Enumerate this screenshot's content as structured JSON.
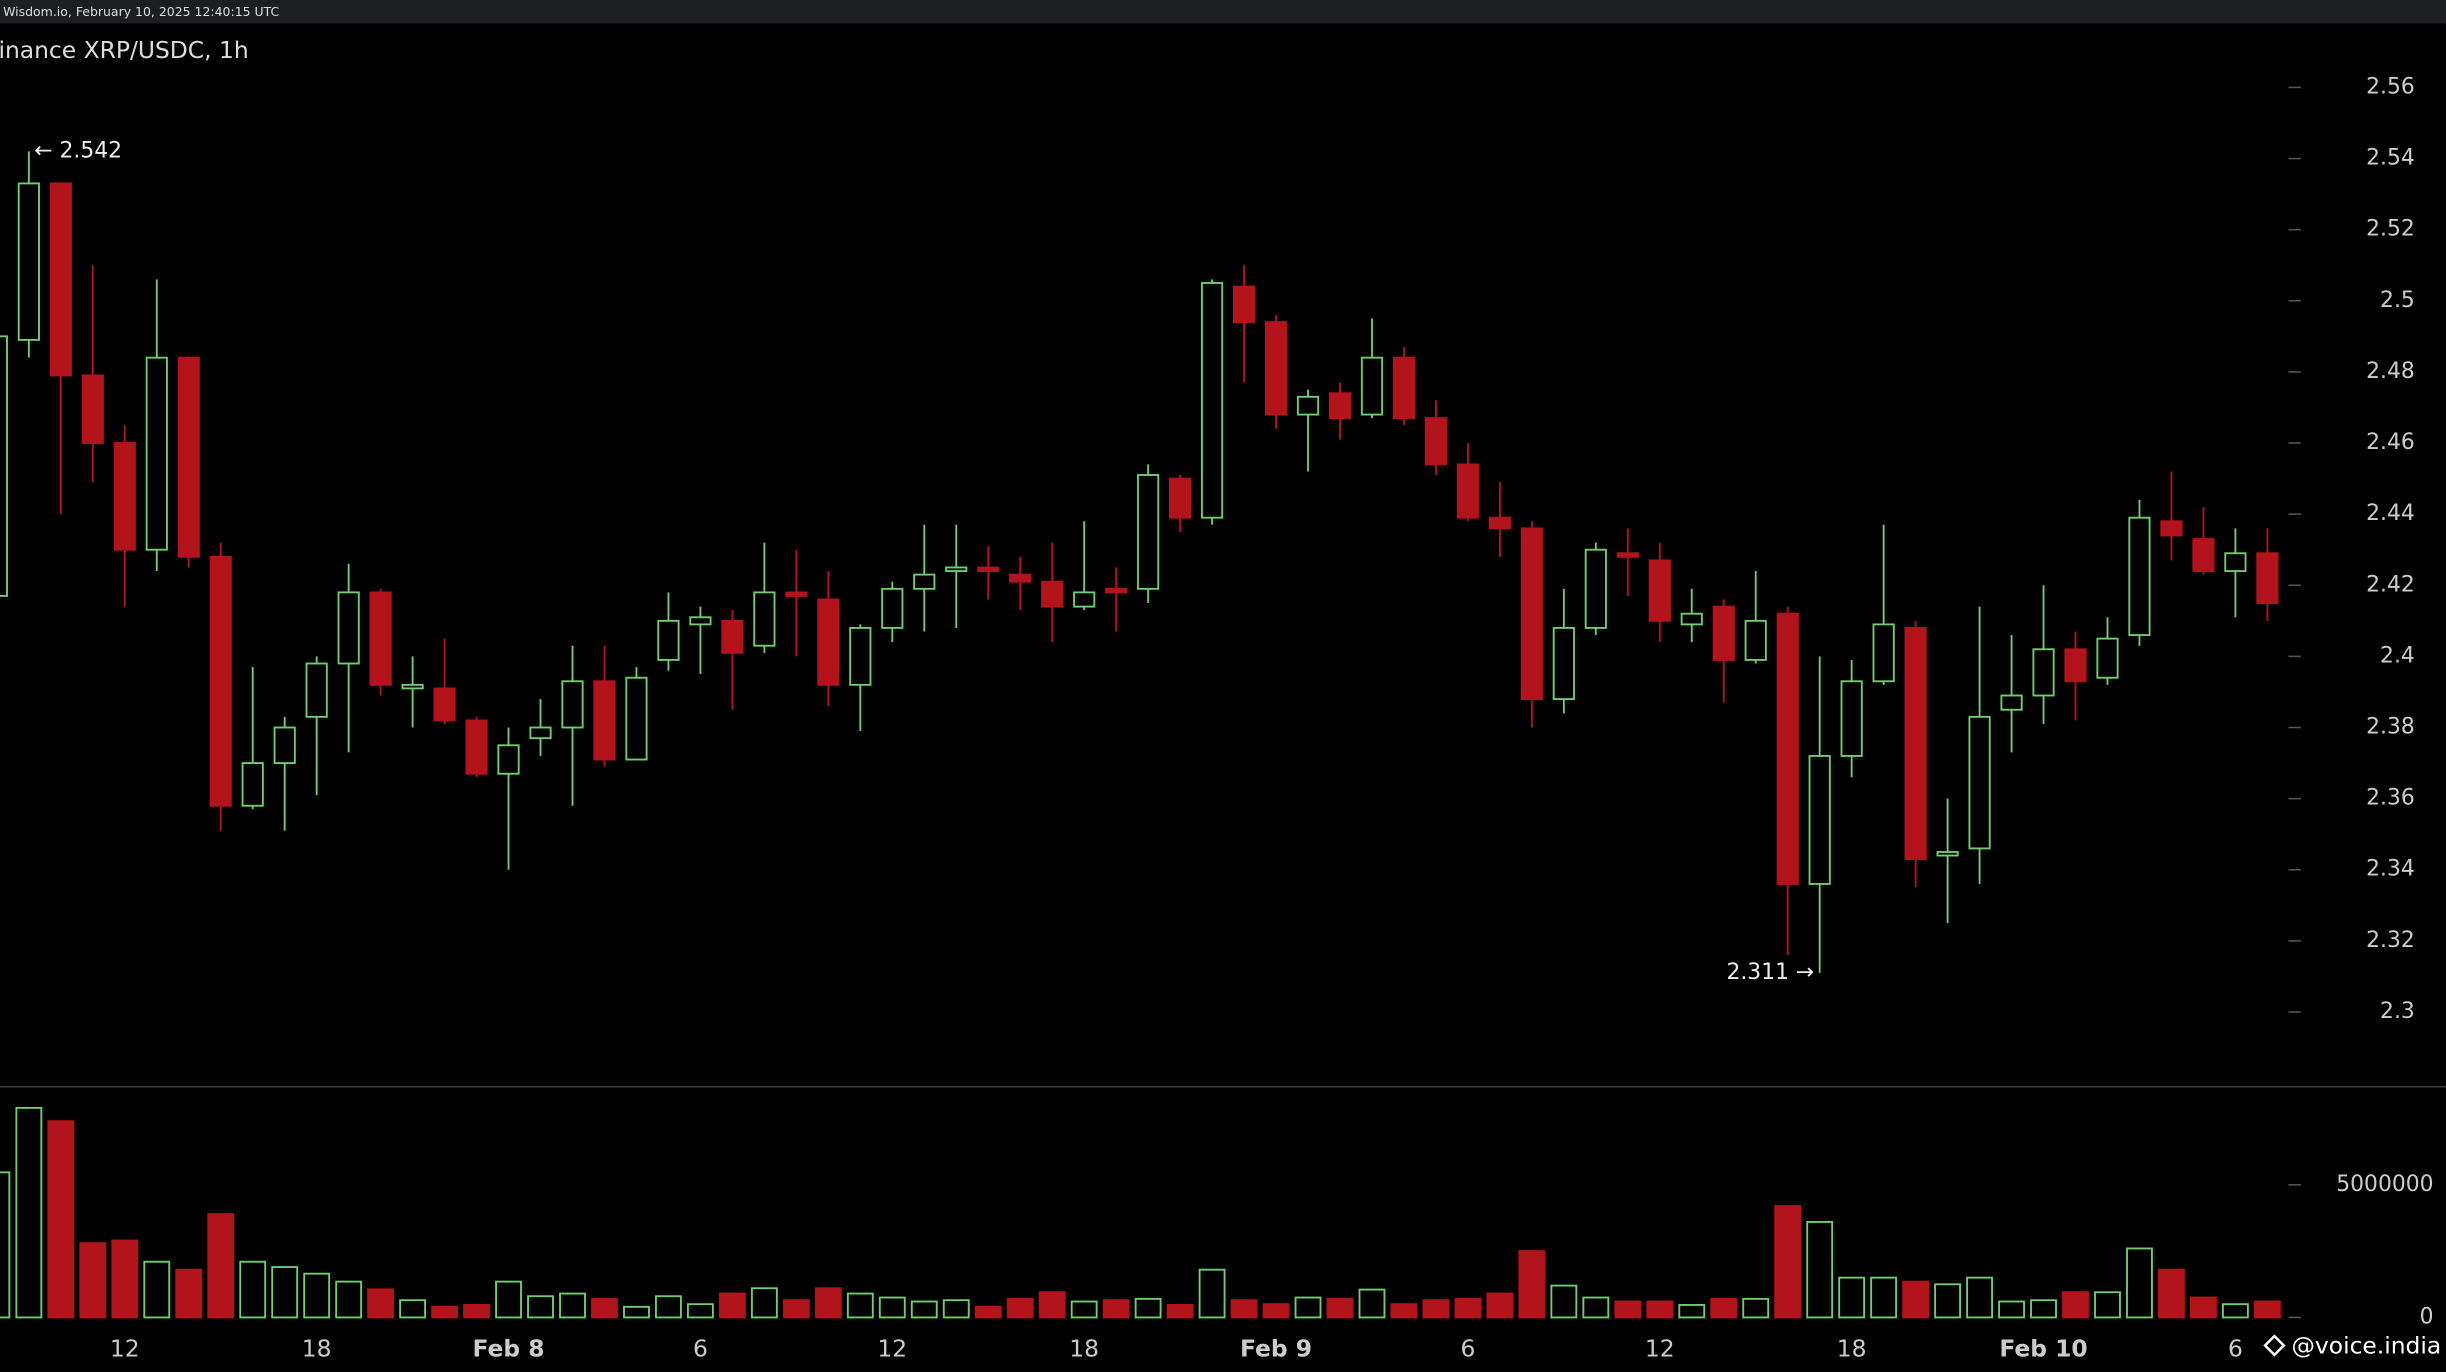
{
  "chart_data": {
    "type": "candlestick",
    "header": "Wisdom.io, February 10, 2025 12:40:15 UTC",
    "title": "inance XRP/USDC, 1h",
    "watermark": "@voice.india",
    "categories": [
      null,
      null,
      null,
      null,
      "12",
      null,
      null,
      null,
      null,
      null,
      "18",
      null,
      null,
      null,
      null,
      null,
      "Feb 8",
      null,
      null,
      null,
      null,
      null,
      "6",
      null,
      null,
      null,
      null,
      null,
      "12",
      null,
      null,
      null,
      null,
      null,
      "18",
      null,
      null,
      null,
      null,
      null,
      "Feb 9",
      null,
      null,
      null,
      null,
      null,
      "6",
      null,
      null,
      null,
      null,
      null,
      "12",
      null,
      null,
      null,
      null,
      null,
      "18",
      null,
      null,
      null,
      null,
      null,
      "Feb 10",
      null,
      null,
      null,
      null,
      null,
      "6",
      null
    ],
    "open": [
      2.417,
      2.489,
      2.533,
      2.479,
      2.46,
      2.43,
      2.484,
      2.428,
      2.358,
      2.37,
      2.383,
      2.398,
      2.418,
      2.391,
      2.391,
      2.382,
      2.367,
      2.377,
      2.38,
      2.393,
      2.371,
      2.399,
      2.409,
      2.41,
      2.403,
      2.418,
      2.416,
      2.392,
      2.408,
      2.419,
      2.424,
      2.425,
      2.423,
      2.421,
      2.414,
      2.419,
      2.419,
      2.45,
      2.439,
      2.504,
      2.494,
      2.468,
      2.474,
      2.468,
      2.484,
      2.467,
      2.454,
      2.439,
      2.436,
      2.388,
      2.408,
      2.429,
      2.427,
      2.409,
      2.414,
      2.399,
      2.412,
      2.336,
      2.372,
      2.393,
      2.408,
      2.344,
      2.346,
      2.385,
      2.389,
      2.402,
      2.394,
      2.406,
      2.438,
      2.433,
      2.424,
      2.429
    ],
    "high": [
      2.49,
      2.542,
      2.533,
      2.51,
      2.465,
      2.506,
      2.484,
      2.432,
      2.397,
      2.383,
      2.4,
      2.426,
      2.419,
      2.4,
      2.405,
      2.383,
      2.38,
      2.388,
      2.403,
      2.403,
      2.397,
      2.418,
      2.414,
      2.413,
      2.432,
      2.43,
      2.424,
      2.409,
      2.421,
      2.437,
      2.437,
      2.431,
      2.428,
      2.432,
      2.438,
      2.425,
      2.454,
      2.451,
      2.506,
      2.51,
      2.496,
      2.475,
      2.477,
      2.495,
      2.487,
      2.472,
      2.46,
      2.449,
      2.438,
      2.419,
      2.432,
      2.436,
      2.432,
      2.419,
      2.416,
      2.424,
      2.414,
      2.4,
      2.399,
      2.437,
      2.41,
      2.36,
      2.414,
      2.406,
      2.42,
      2.407,
      2.411,
      2.444,
      2.452,
      2.442,
      2.436,
      2.436
    ],
    "low": [
      2.417,
      2.484,
      2.44,
      2.449,
      2.414,
      2.424,
      2.425,
      2.351,
      2.357,
      2.351,
      2.361,
      2.373,
      2.389,
      2.38,
      2.381,
      2.366,
      2.34,
      2.372,
      2.358,
      2.369,
      2.371,
      2.396,
      2.395,
      2.385,
      2.401,
      2.4,
      2.386,
      2.379,
      2.404,
      2.407,
      2.408,
      2.416,
      2.413,
      2.404,
      2.413,
      2.407,
      2.415,
      2.435,
      2.437,
      2.477,
      2.464,
      2.452,
      2.461,
      2.467,
      2.465,
      2.451,
      2.438,
      2.428,
      2.38,
      2.384,
      2.406,
      2.417,
      2.404,
      2.404,
      2.387,
      2.398,
      2.316,
      2.311,
      2.366,
      2.392,
      2.335,
      2.325,
      2.336,
      2.373,
      2.381,
      2.382,
      2.392,
      2.403,
      2.427,
      2.423,
      2.411,
      2.41
    ],
    "close": [
      2.49,
      2.533,
      2.479,
      2.46,
      2.43,
      2.484,
      2.428,
      2.358,
      2.37,
      2.38,
      2.398,
      2.418,
      2.392,
      2.392,
      2.382,
      2.367,
      2.375,
      2.38,
      2.393,
      2.371,
      2.394,
      2.41,
      2.411,
      2.401,
      2.418,
      2.417,
      2.392,
      2.408,
      2.419,
      2.423,
      2.425,
      2.424,
      2.421,
      2.414,
      2.418,
      2.418,
      2.451,
      2.439,
      2.505,
      2.494,
      2.468,
      2.473,
      2.467,
      2.484,
      2.467,
      2.454,
      2.439,
      2.436,
      2.388,
      2.408,
      2.43,
      2.428,
      2.41,
      2.412,
      2.399,
      2.41,
      2.336,
      2.372,
      2.393,
      2.409,
      2.343,
      2.345,
      2.383,
      2.389,
      2.402,
      2.393,
      2.405,
      2.439,
      2.434,
      2.424,
      2.429,
      2.415
    ],
    "volume": [
      5470000,
      7900000,
      7400000,
      2800000,
      2900000,
      2100000,
      1800000,
      3900000,
      2100000,
      1900000,
      1650000,
      1350000,
      1060000,
      650000,
      400000,
      470000,
      1350000,
      800000,
      900000,
      700000,
      400000,
      800000,
      500000,
      900000,
      1100000,
      650000,
      1100000,
      900000,
      750000,
      600000,
      650000,
      400000,
      700000,
      950000,
      600000,
      650000,
      700000,
      470000,
      1800000,
      650000,
      500000,
      750000,
      700000,
      1050000,
      500000,
      650000,
      700000,
      900000,
      2500000,
      1200000,
      750000,
      600000,
      600000,
      470000,
      700000,
      700000,
      4200000,
      3600000,
      1500000,
      1500000,
      1350000,
      1250000,
      1500000,
      600000,
      650000,
      950000,
      950000,
      2600000,
      1800000,
      750000,
      500000,
      600000
    ],
    "up_color": "#6fcf6f",
    "down_color": "#b3141b",
    "ylim": [
      2.279,
      2.578
    ],
    "yticks": [
      2.3,
      2.32,
      2.34,
      2.36,
      2.38,
      2.4,
      2.42,
      2.44,
      2.46,
      2.48,
      2.5,
      2.52,
      2.54,
      2.56
    ],
    "volume_ylim": [
      0,
      8700000
    ],
    "volume_yticks": [
      0,
      5000000
    ],
    "annotations": [
      {
        "label": "← 2.542",
        "value": 2.542
      },
      {
        "label": "2.311 →",
        "value": 2.311
      }
    ]
  }
}
